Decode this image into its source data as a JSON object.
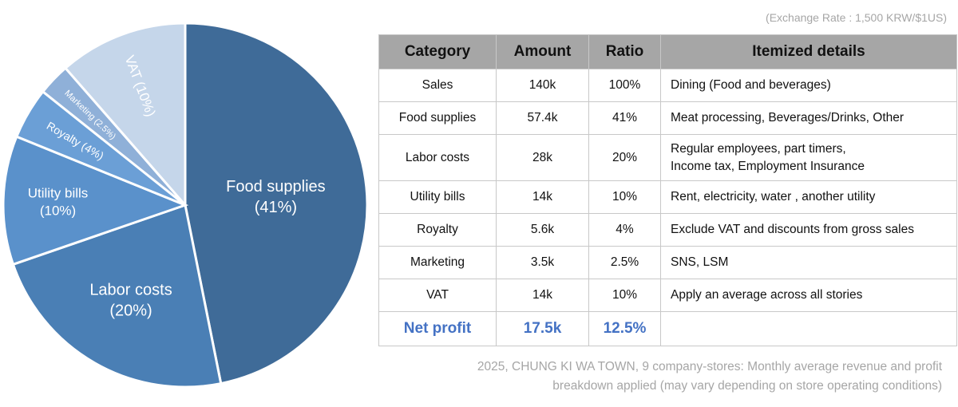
{
  "exchange_rate": "(Exchange Rate : 1,500 KRW/$1US)",
  "chart_data": {
    "type": "pie",
    "slices": [
      {
        "name": "Food supplies",
        "value": 41,
        "label": [
          "Food supplies",
          "(41%)"
        ],
        "color": "#3f6b98"
      },
      {
        "name": "Labor costs",
        "value": 20,
        "label": [
          "Labor costs",
          "(20%)"
        ],
        "color": "#4a7fb5"
      },
      {
        "name": "Utility bills",
        "value": 10,
        "label": [
          "Utility bills",
          "(10%)"
        ],
        "color": "#5a91cb"
      },
      {
        "name": "Royalty",
        "value": 4,
        "label": [
          "Royalty (4%)"
        ],
        "color": "#6b9fd6"
      },
      {
        "name": "Marketing",
        "value": 2.5,
        "label": [
          "Marketing (2.5%)"
        ],
        "color": "#8fb0d8"
      },
      {
        "name": "VAT",
        "value": 10,
        "label": [
          "VAT (10%)"
        ],
        "color": "#c5d6ea"
      }
    ]
  },
  "table": {
    "headers": [
      "Category",
      "Amount",
      "Ratio",
      "Itemized details"
    ],
    "rows": [
      {
        "category": "Sales",
        "amount": "140k",
        "ratio": "100%",
        "details": [
          "Dining (Food and beverages)"
        ]
      },
      {
        "category": "Food supplies",
        "amount": "57.4k",
        "ratio": "41%",
        "details": [
          "Meat processing, Beverages/Drinks, Other"
        ]
      },
      {
        "category": "Labor costs",
        "amount": "28k",
        "ratio": "20%",
        "details": [
          "Regular employees, part timers,",
          "Income tax, Employment Insurance"
        ]
      },
      {
        "category": "Utility bills",
        "amount": "14k",
        "ratio": "10%",
        "details": [
          "Rent, electricity, water , another utility"
        ]
      },
      {
        "category": "Royalty",
        "amount": "5.6k",
        "ratio": "4%",
        "details": [
          "Exclude VAT and discounts from gross sales"
        ]
      },
      {
        "category": "Marketing",
        "amount": "3.5k",
        "ratio": "2.5%",
        "details": [
          "SNS, LSM"
        ]
      },
      {
        "category": "VAT",
        "amount": "14k",
        "ratio": "10%",
        "details": [
          "Apply an average across all stories"
        ]
      }
    ],
    "net": {
      "category": "Net profit",
      "amount": "17.5k",
      "ratio": "12.5%"
    }
  },
  "footnote": [
    "2025, CHUNG KI WA TOWN, 9 company-stores: Monthly average revenue and profit",
    "breakdown applied (may vary depending on store operating conditions)"
  ]
}
